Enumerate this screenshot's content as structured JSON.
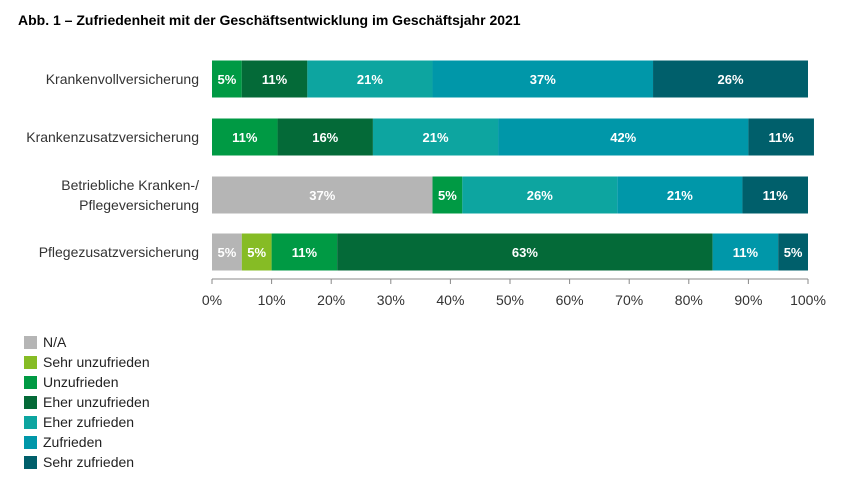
{
  "chart_data": {
    "type": "bar",
    "orientation": "horizontal",
    "stacked": true,
    "title": "Abb. 1 – Zufriedenheit mit der Geschäftsentwicklung im Geschäftsjahr 2021",
    "categories": [
      [
        "Krankenvollversicherung"
      ],
      [
        "Krankenzusatzversicherung"
      ],
      [
        "Betriebliche Kranken-/",
        "Pflegeversicherung"
      ],
      [
        "Pflegezusatzversicherung"
      ]
    ],
    "series": [
      {
        "name": "N/A",
        "color": "#b5b5b5",
        "values": [
          0,
          0,
          37,
          5
        ],
        "labels": [
          "",
          "",
          "37%",
          "5%"
        ]
      },
      {
        "name": "Sehr unzufrieden",
        "color": "#86bc25",
        "values": [
          0,
          0,
          0,
          5
        ],
        "labels": [
          "",
          "",
          "",
          "5%"
        ]
      },
      {
        "name": "Unzufrieden",
        "color": "#009a44",
        "values": [
          5,
          11,
          5,
          11
        ],
        "labels": [
          "5%",
          "11%",
          "5%",
          "11%"
        ]
      },
      {
        "name": "Eher unzufrieden",
        "color": "#046a38",
        "values": [
          11,
          16,
          0,
          63
        ],
        "labels": [
          "11%",
          "16%",
          "",
          "63%"
        ]
      },
      {
        "name": "Eher zufrieden",
        "color": "#0da5a0",
        "values": [
          21,
          21,
          26,
          0
        ],
        "labels": [
          "21%",
          "21%",
          "26%",
          ""
        ]
      },
      {
        "name": "Zufrieden",
        "color": "#0097a9",
        "values": [
          37,
          42,
          21,
          11
        ],
        "labels": [
          "37%",
          "42%",
          "21%",
          "11%"
        ]
      },
      {
        "name": "Sehr zufrieden",
        "color": "#005f6b",
        "values": [
          26,
          11,
          11,
          5
        ],
        "labels": [
          "26%",
          "11%",
          "11%",
          "5%"
        ]
      }
    ],
    "xlim": [
      0,
      100
    ],
    "xticks": [
      "0%",
      "10%",
      "20%",
      "30%",
      "40%",
      "50%",
      "60%",
      "70%",
      "80%",
      "90%",
      "100%"
    ],
    "legend": "bottom-left"
  }
}
